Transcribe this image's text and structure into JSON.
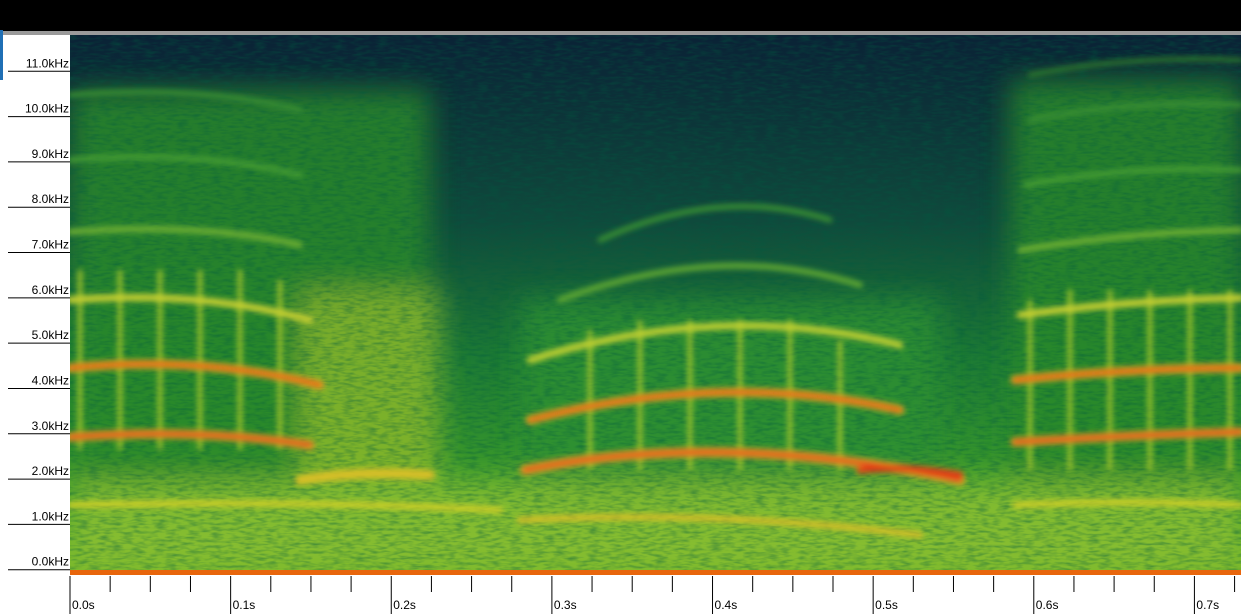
{
  "chart_data": {
    "type": "spectrogram",
    "xlim": [
      0,
      0.729
    ],
    "ylim": [
      -0.05,
      11.8
    ],
    "xticks": [
      {
        "value": 0.0,
        "label": "0.0s"
      },
      {
        "value": 0.1,
        "label": "0.1s"
      },
      {
        "value": 0.2,
        "label": "0.2s"
      },
      {
        "value": 0.3,
        "label": "0.3s"
      },
      {
        "value": 0.4,
        "label": "0.4s"
      },
      {
        "value": 0.5,
        "label": "0.5s"
      },
      {
        "value": 0.6,
        "label": "0.6s"
      },
      {
        "value": 0.7,
        "label": "0.7s"
      }
    ],
    "xminorticks": [
      0.025,
      0.05,
      0.075,
      0.125,
      0.15,
      0.175,
      0.225,
      0.25,
      0.275,
      0.325,
      0.35,
      0.375,
      0.425,
      0.45,
      0.475,
      0.525,
      0.55,
      0.575,
      0.625,
      0.65,
      0.675,
      0.725
    ],
    "yticks": [
      {
        "value": 0.0,
        "label": "0.0kHz"
      },
      {
        "value": 1.0,
        "label": "1.0kHz"
      },
      {
        "value": 2.0,
        "label": "2.0kHz"
      },
      {
        "value": 3.0,
        "label": "3.0kHz"
      },
      {
        "value": 4.0,
        "label": "4.0kHz"
      },
      {
        "value": 5.0,
        "label": "5.0kHz"
      },
      {
        "value": 6.0,
        "label": "6.0kHz"
      },
      {
        "value": 7.0,
        "label": "7.0kHz"
      },
      {
        "value": 8.0,
        "label": "8.0kHz"
      },
      {
        "value": 9.0,
        "label": "9.0kHz"
      },
      {
        "value": 10.0,
        "label": "10.0kHz"
      },
      {
        "value": 11.0,
        "label": "11.0kHz"
      }
    ]
  }
}
